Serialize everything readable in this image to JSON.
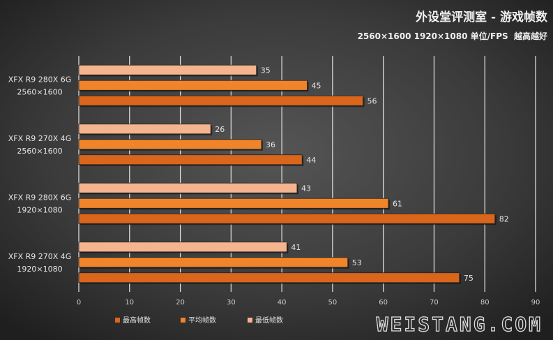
{
  "title": "外设堂评测室 - 游戏帧数",
  "subtitle": "2560×1600 1920×1080 单位/FPS  越高越好",
  "watermark": "WEISTANG.COM",
  "colors": {
    "max": "#d9661b",
    "avg": "#f0842b",
    "min": "#f4b48e",
    "grid": "#e8e8e8",
    "text": "#e6e6e6",
    "axis_text": "#cccccc"
  },
  "chart_data": {
    "type": "bar",
    "orientation": "horizontal",
    "title": "外设堂评测室 - 游戏帧数",
    "subtitle": "2560×1600 1920×1080 单位/FPS  越高越好",
    "categories": [
      [
        "XFX R9 280X 6G",
        "2560×1600"
      ],
      [
        "XFX R9 270X 4G",
        "2560×1600"
      ],
      [
        "XFX R9 280X 6G",
        "1920×1080"
      ],
      [
        "XFX R9 270X 4G",
        "1920×1080"
      ]
    ],
    "series": [
      {
        "name": "最低帧数",
        "key": "min",
        "values": [
          35,
          26,
          43,
          41
        ]
      },
      {
        "name": "平均帧数",
        "key": "avg",
        "values": [
          45,
          36,
          61,
          53
        ]
      },
      {
        "name": "最高帧数",
        "key": "max",
        "values": [
          56,
          44,
          82,
          75
        ]
      }
    ],
    "xlim": [
      0,
      90
    ],
    "xticks": [
      0,
      10,
      20,
      30,
      40,
      50,
      60,
      70,
      80,
      90
    ],
    "legend": [
      {
        "name": "最高帧数",
        "key": "max"
      },
      {
        "name": "平均帧数",
        "key": "avg"
      },
      {
        "name": "最低帧数",
        "key": "min"
      }
    ],
    "legend_position": "bottom",
    "grid": true
  }
}
